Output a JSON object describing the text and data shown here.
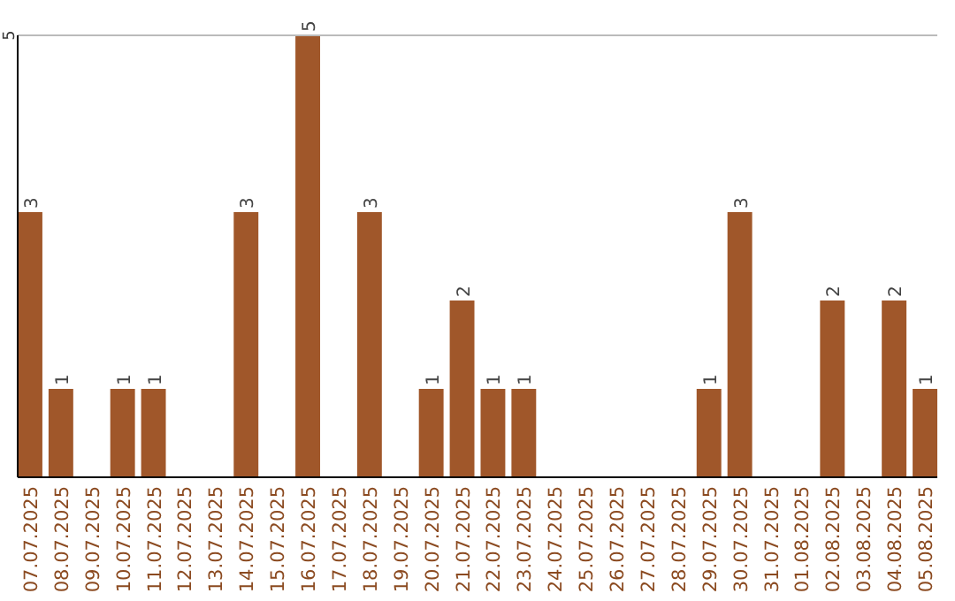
{
  "chart_data": {
    "type": "bar",
    "categories": [
      "07.07.2025",
      "08.07.2025",
      "09.07.2025",
      "10.07.2025",
      "11.07.2025",
      "12.07.2025",
      "13.07.2025",
      "14.07.2025",
      "15.07.2025",
      "16.07.2025",
      "17.07.2025",
      "18.07.2025",
      "19.07.2025",
      "20.07.2025",
      "21.07.2025",
      "22.07.2025",
      "23.07.2025",
      "24.07.2025",
      "25.07.2025",
      "26.07.2025",
      "27.07.2025",
      "28.07.2025",
      "29.07.2025",
      "30.07.2025",
      "31.07.2025",
      "01.08.2025",
      "02.08.2025",
      "03.08.2025",
      "04.08.2025",
      "05.08.2025"
    ],
    "values": [
      3,
      1,
      0,
      1,
      1,
      0,
      0,
      3,
      0,
      5,
      0,
      3,
      0,
      1,
      2,
      1,
      1,
      0,
      0,
      0,
      0,
      0,
      1,
      3,
      0,
      0,
      2,
      0,
      2,
      1
    ],
    "value_labels": [
      "3",
      "1",
      null,
      "1",
      "1",
      null,
      null,
      "3",
      null,
      "5",
      null,
      "3",
      null,
      "1",
      "2",
      "1",
      "1",
      null,
      null,
      null,
      null,
      null,
      "1",
      "3",
      null,
      null,
      "2",
      null,
      "2",
      "1"
    ],
    "color": "#a0572a",
    "ylim": [
      0,
      5
    ],
    "yticks": [
      5
    ]
  }
}
